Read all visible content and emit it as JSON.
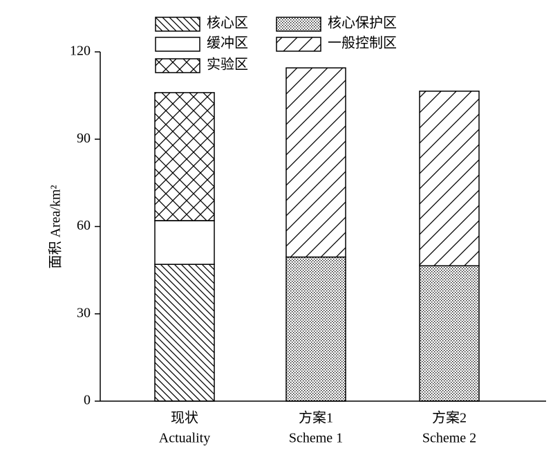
{
  "chart_data": {
    "type": "stacked_bar",
    "y_label": "面积 Area/km²",
    "categories": [
      [
        "现状",
        "Actuality"
      ],
      [
        "方案1",
        "Scheme 1"
      ],
      [
        "方案2",
        "Scheme 2"
      ]
    ],
    "series": [
      {
        "name": "核心区",
        "color": "#000000",
        "pattern": "backslash",
        "values": [
          47,
          null,
          null
        ]
      },
      {
        "name": "缓冲区",
        "color": "#000000",
        "pattern": "none",
        "values": [
          15,
          null,
          null
        ]
      },
      {
        "name": "实验区",
        "color": "#000000",
        "pattern": "crosshatch",
        "values": [
          44,
          null,
          null
        ]
      },
      {
        "name": "核心保护区",
        "color": "#000000",
        "pattern": "dots",
        "values": [
          null,
          49.5,
          46.5
        ]
      },
      {
        "name": "一般控制区",
        "color": "#000000",
        "pattern": "slash",
        "values": [
          null,
          65,
          60
        ]
      }
    ],
    "ylim": [
      0,
      120
    ],
    "yticks": [
      0,
      30,
      60,
      90,
      120
    ]
  }
}
